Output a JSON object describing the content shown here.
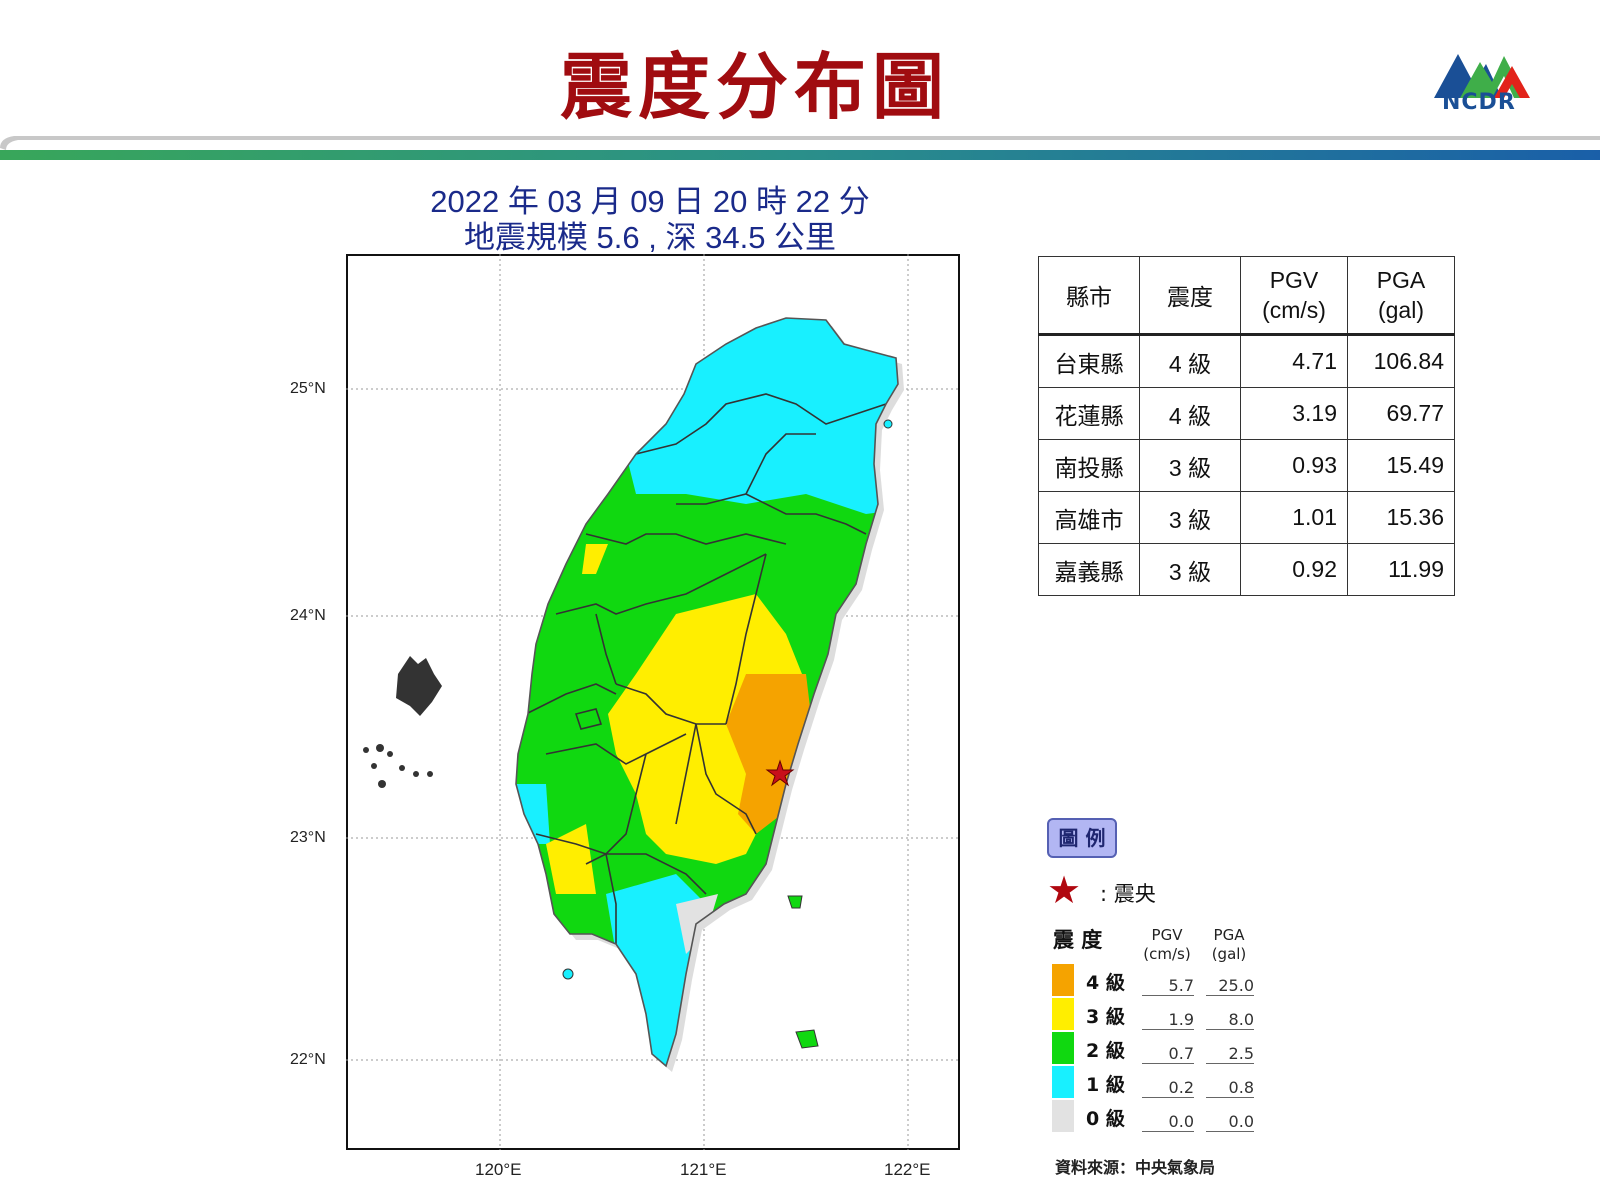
{
  "header": {
    "title": "震度分布圖",
    "logo_text": "NCDR"
  },
  "quake": {
    "datetime": "2022 年 03 月 09 日 20 時 22 分",
    "info": "地震規模 5.6 , 深 34.5 公里"
  },
  "map": {
    "lat_labels": [
      "25°N",
      "24°N",
      "23°N",
      "22°N"
    ],
    "lon_labels": [
      "120°E",
      "121°E",
      "122°E"
    ],
    "epicenter_icon": "star-icon"
  },
  "table": {
    "headers": {
      "county": "縣市",
      "intensity": "震度",
      "pgv": "PGV",
      "pgv_unit": "(cm/s)",
      "pga": "PGA",
      "pga_unit": "(gal)"
    },
    "rows": [
      {
        "county": "台東縣",
        "intensity": "4 級",
        "pgv": "4.71",
        "pga": "106.84"
      },
      {
        "county": "花蓮縣",
        "intensity": "4 級",
        "pgv": "3.19",
        "pga": "69.77"
      },
      {
        "county": "南投縣",
        "intensity": "3 級",
        "pgv": "0.93",
        "pga": "15.49"
      },
      {
        "county": "高雄市",
        "intensity": "3 級",
        "pgv": "1.01",
        "pga": "15.36"
      },
      {
        "county": "嘉義縣",
        "intensity": "3 級",
        "pgv": "0.92",
        "pga": "11.99"
      }
    ]
  },
  "legend": {
    "tag": "圖 例",
    "epicenter_label": ":  震央",
    "head_intensity": "震 度",
    "head_pgv": "PGV",
    "head_pgv_unit": "(cm/s)",
    "head_pga": "PGA",
    "head_pga_unit": "(gal)",
    "levels": [
      {
        "label": "4 級",
        "pgv": "5.7",
        "pga": "25.0",
        "color": "#f5a300"
      },
      {
        "label": "3 級",
        "pgv": "1.9",
        "pga": "8.0",
        "color": "#ffee00"
      },
      {
        "label": "2 級",
        "pgv": "0.7",
        "pga": "2.5",
        "color": "#10d810"
      },
      {
        "label": "1 級",
        "pgv": "0.2",
        "pga": "0.8",
        "color": "#18f0ff"
      },
      {
        "label": "0 級",
        "pgv": "0.0",
        "pga": "0.0",
        "color": "#e2e2e2"
      }
    ],
    "source": "資料來源：中央氣象局"
  }
}
